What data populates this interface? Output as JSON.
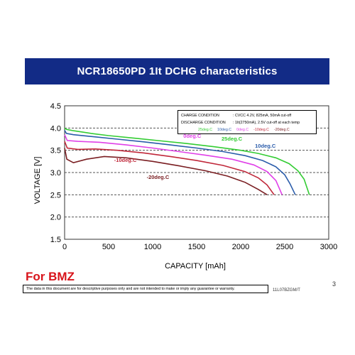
{
  "slide": {
    "title": "NCR18650PD 1It DCHG characteristics",
    "brand_note": "For BMZ",
    "disclaimer": "The data in this document are for descriptive purposes only and are not intended to make or imply any guarantee or warranty.",
    "doc_code": "11L07BZGM/T",
    "page_number": "3"
  },
  "conditions": {
    "charge_label": "CHARGE CONDITION",
    "charge_value": ": CVCC 4.2V, 825mA, 50mA cut-off",
    "discharge_label": "DISCHARGE CONDITION",
    "discharge_value": ": 1It(2750mA),    2.5V cut-off at each temp"
  },
  "colors": {
    "title_bg": "#122b86",
    "brand": "#d8141b",
    "t25": "#33cc33",
    "t10": "#2a5caa",
    "t0": "#e040e8",
    "tm10": "#c0283a",
    "tm20": "#7a1e22",
    "grid": "#555555"
  },
  "chart_data": {
    "type": "line",
    "xlabel": "CAPACITY [mAh]",
    "ylabel": "VOLTAGE [V]",
    "xlim": [
      0,
      3000
    ],
    "ylim": [
      1.5,
      4.5
    ],
    "x_ticks": [
      "0",
      "500",
      "1000",
      "1500",
      "2000",
      "2500",
      "3000"
    ],
    "y_ticks": [
      "1.5",
      "2.0",
      "2.5",
      "3.0",
      "3.5",
      "4.0",
      "4.5"
    ],
    "grid": "horizontal dashed",
    "legend": "top-right",
    "series": [
      {
        "name": "25deg.C",
        "color_key": "t25",
        "points": [
          [
            0,
            4.0
          ],
          [
            20,
            3.97
          ],
          [
            100,
            3.94
          ],
          [
            300,
            3.88
          ],
          [
            500,
            3.83
          ],
          [
            800,
            3.77
          ],
          [
            1100,
            3.71
          ],
          [
            1400,
            3.65
          ],
          [
            1700,
            3.58
          ],
          [
            2000,
            3.5
          ],
          [
            2200,
            3.43
          ],
          [
            2400,
            3.33
          ],
          [
            2550,
            3.2
          ],
          [
            2650,
            3.04
          ],
          [
            2720,
            2.85
          ],
          [
            2780,
            2.5
          ]
        ],
        "label": "25deg.C",
        "label_value": [
          1900,
          3.72
        ]
      },
      {
        "name": "10deg.C",
        "color_key": "t10",
        "points": [
          [
            0,
            3.95
          ],
          [
            20,
            3.88
          ],
          [
            100,
            3.85
          ],
          [
            300,
            3.81
          ],
          [
            600,
            3.75
          ],
          [
            900,
            3.69
          ],
          [
            1200,
            3.62
          ],
          [
            1500,
            3.55
          ],
          [
            1800,
            3.47
          ],
          [
            2050,
            3.38
          ],
          [
            2250,
            3.27
          ],
          [
            2400,
            3.13
          ],
          [
            2500,
            2.95
          ],
          [
            2560,
            2.75
          ],
          [
            2620,
            2.5
          ]
        ],
        "label": "10deg.C",
        "label_value": [
          2280,
          3.56
        ]
      },
      {
        "name": "0deg.C",
        "color_key": "t0",
        "points": [
          [
            0,
            3.85
          ],
          [
            30,
            3.72
          ],
          [
            150,
            3.7
          ],
          [
            400,
            3.68
          ],
          [
            700,
            3.62
          ],
          [
            1000,
            3.55
          ],
          [
            1300,
            3.47
          ],
          [
            1600,
            3.39
          ],
          [
            1900,
            3.3
          ],
          [
            2150,
            3.17
          ],
          [
            2300,
            3.02
          ],
          [
            2400,
            2.82
          ],
          [
            2470,
            2.5
          ]
        ],
        "label": "0deg.C",
        "label_value": [
          1450,
          3.78
        ]
      },
      {
        "name": "-10deg.C",
        "color_key": "tm10",
        "points": [
          [
            0,
            3.7
          ],
          [
            30,
            3.55
          ],
          [
            150,
            3.52
          ],
          [
            350,
            3.53
          ],
          [
            600,
            3.5
          ],
          [
            900,
            3.44
          ],
          [
            1200,
            3.36
          ],
          [
            1500,
            3.27
          ],
          [
            1800,
            3.16
          ],
          [
            2050,
            3.02
          ],
          [
            2200,
            2.88
          ],
          [
            2300,
            2.72
          ],
          [
            2380,
            2.5
          ]
        ],
        "label": "-10deg.C",
        "label_value": [
          690,
          3.24
        ]
      },
      {
        "name": "-20deg.C",
        "color_key": "tm20",
        "points": [
          [
            0,
            3.55
          ],
          [
            25,
            3.3
          ],
          [
            100,
            3.22
          ],
          [
            250,
            3.3
          ],
          [
            450,
            3.36
          ],
          [
            700,
            3.33
          ],
          [
            1000,
            3.25
          ],
          [
            1300,
            3.15
          ],
          [
            1600,
            3.04
          ],
          [
            1850,
            2.92
          ],
          [
            2050,
            2.78
          ],
          [
            2200,
            2.62
          ],
          [
            2300,
            2.5
          ]
        ],
        "label": "-20deg.C",
        "label_value": [
          1060,
          2.86
        ]
      }
    ]
  }
}
